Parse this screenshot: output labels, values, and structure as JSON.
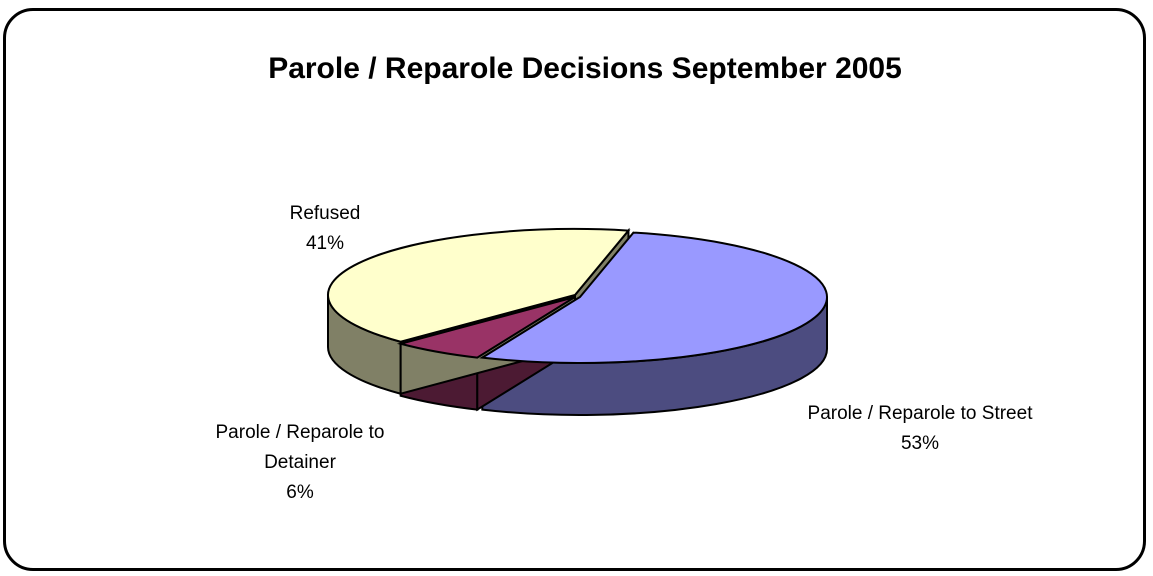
{
  "chart_data": {
    "type": "pie",
    "title": "Parole / Reparole Decisions September 2005",
    "slices": [
      {
        "label": "Parole / Reparole to Street",
        "value": 53,
        "percent_label": "53%",
        "color": "#9999ff",
        "side_color": "#4c4c80"
      },
      {
        "label": "Parole / Reparole to Detainer",
        "value": 6,
        "percent_label": "6%",
        "color": "#993366",
        "side_color": "#4c1a33"
      },
      {
        "label": "Refused",
        "value": 41,
        "percent_label": "41%",
        "color": "#ffffcc",
        "side_color": "#808066"
      }
    ]
  }
}
